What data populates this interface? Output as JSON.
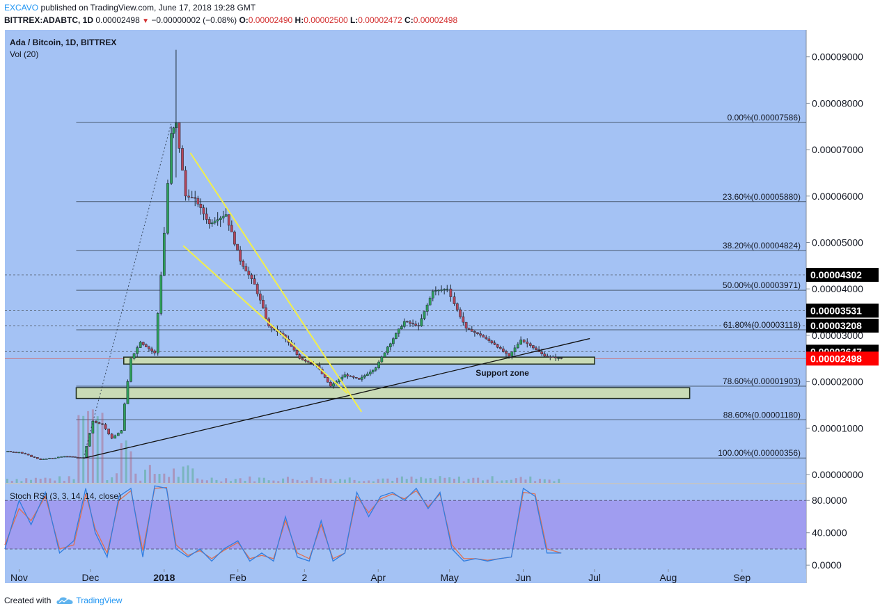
{
  "header": {
    "publisher": "EXCAVO",
    "published_text": "published on TradingView.com, June 17, 2018 19:28 GMT",
    "symbol": "BITTREX:ADABTC, 1D",
    "last": "0.00002498",
    "change": "−0.00000002 (−0.08%)",
    "o_label": "O:",
    "o": "0.00002490",
    "h_label": "H:",
    "h": "0.00002500",
    "l_label": "L:",
    "l": "0.00002472",
    "c_label": "C:",
    "c": "0.00002498"
  },
  "footer": {
    "created_with": "Created with",
    "brand": "TradingView"
  },
  "colors": {
    "background": "#a4c2f4",
    "up": "#2e9e5a",
    "down": "#b5455a",
    "fib_line": "#4a5b70",
    "wedge": "#f2ef4a",
    "zone": "#c9dbb6",
    "price_tag": "#000000",
    "last_tag": "#ff0000",
    "stoch_band": "#a096ef",
    "k_line": "#2f7de0",
    "d_line": "#e06f4f"
  },
  "chart_data": {
    "type": "candlestick",
    "title": "Ada / Bitcoin, 1D, BITTREX",
    "volume_label": "Vol (20)",
    "x_ticks": [
      "Nov",
      "Dec",
      "2018",
      "Feb",
      "2",
      "Apr",
      "May",
      "Jun",
      "Jul",
      "Aug",
      "Sep"
    ],
    "y_ticks": [
      "0.00000000",
      "0.00001000",
      "0.00002000",
      "0.00003000",
      "0.00004000",
      "0.00005000",
      "0.00006000",
      "0.00007000",
      "0.00008000",
      "0.00009000"
    ],
    "ylim": [
      -1.8e-06,
      9.58e-05
    ],
    "price_series": {
      "name": "ADABTC",
      "dates": [
        "2017-10-26",
        "2017-11-01",
        "2017-11-10",
        "2017-11-20",
        "2017-11-28",
        "2017-12-02",
        "2017-12-06",
        "2017-12-10",
        "2017-12-14",
        "2017-12-18",
        "2017-12-22",
        "2017-12-28",
        "2018-01-01",
        "2018-01-04",
        "2018-01-06",
        "2018-01-10",
        "2018-01-14",
        "2018-01-20",
        "2018-01-27",
        "2018-02-02",
        "2018-02-08",
        "2018-02-14",
        "2018-02-20",
        "2018-02-27",
        "2018-03-06",
        "2018-03-12",
        "2018-03-18",
        "2018-03-24",
        "2018-03-31",
        "2018-04-05",
        "2018-04-12",
        "2018-04-18",
        "2018-04-24",
        "2018-04-30",
        "2018-05-03",
        "2018-05-08",
        "2018-05-14",
        "2018-05-20",
        "2018-05-26",
        "2018-05-31",
        "2018-06-04",
        "2018-06-10",
        "2018-06-17"
      ],
      "close": [
        5e-06,
        4.8e-06,
        3.2e-06,
        3.9e-06,
        3.6e-06,
        1.15e-05,
        1.08e-05,
        7.8e-06,
        9.5e-06,
        2.5e-05,
        2.85e-05,
        2.62e-05,
        5.2e-05,
        7.35e-05,
        7.58e-05,
        6e-05,
        5.95e-05,
        5.4e-05,
        5.6e-05,
        4.6e-05,
        4.1e-05,
        3.2e-05,
        3e-05,
        2.5e-05,
        2.35e-05,
        1.9e-05,
        2.15e-05,
        2.05e-05,
        2.3e-05,
        2.75e-05,
        3.3e-05,
        3.2e-05,
        3.95e-05,
        4e-05,
        3.68e-05,
        3.15e-05,
        3e-05,
        2.8e-05,
        2.55e-05,
        2.9e-05,
        2.78e-05,
        2.55e-05,
        2.5e-05
      ]
    },
    "fibonacci": [
      {
        "label": "0.00%(0.00007586)",
        "value": 7.586e-05
      },
      {
        "label": "23.60%(0.00005880)",
        "value": 5.88e-05
      },
      {
        "label": "38.20%(0.00004824)",
        "value": 4.824e-05
      },
      {
        "label": "50.00%(0.00003971)",
        "value": 3.971e-05
      },
      {
        "label": "61.80%(0.00003118)",
        "value": 3.118e-05
      },
      {
        "label": "78.60%(0.00001903)",
        "value": 1.903e-05
      },
      {
        "label": "88.60%(0.00001180)",
        "value": 1.18e-05
      },
      {
        "label": "100.00%(0.00000356)",
        "value": 3.56e-06
      }
    ],
    "price_tags": [
      {
        "label": "0.00004302",
        "value": 4.302e-05
      },
      {
        "label": "0.00003531",
        "value": 3.531e-05
      },
      {
        "label": "0.00003208",
        "value": 3.208e-05
      },
      {
        "label": "0.00002647",
        "value": 2.647e-05
      },
      {
        "label": "0.00002498",
        "value": 2.498e-05,
        "last": true
      }
    ],
    "support_zones": [
      {
        "from": "2017-12-15",
        "to": "2018-07-01",
        "low": 2.38e-05,
        "high": 2.53e-05
      },
      {
        "from": "2017-11-25",
        "to": "2018-08-10",
        "low": 1.64e-05,
        "high": 1.87e-05
      }
    ],
    "support_zone_label": "Support zone",
    "wedge_upper": [
      {
        "date": "2018-01-12",
        "value": 6.93e-05
      },
      {
        "date": "2018-03-25",
        "value": 1.35e-05
      }
    ],
    "wedge_lower": [
      {
        "date": "2018-01-09",
        "value": 4.93e-05
      },
      {
        "date": "2018-03-19",
        "value": 1.75e-05
      }
    ],
    "trendline": [
      {
        "date": "2017-11-28",
        "value": 3.5e-06
      },
      {
        "date": "2018-06-29",
        "value": 2.93e-05
      }
    ],
    "impulse_dotted": [
      {
        "date": "2017-11-28",
        "value": 3.5e-06
      },
      {
        "date": "2018-01-04",
        "value": 7.58e-05
      }
    ],
    "stoch_rsi": {
      "label": "Stoch RSI (3, 3, 14, 14, close)",
      "y_ticks": [
        "0.0000",
        "40.0000",
        "80.0000"
      ],
      "ylim": [
        -5,
        100
      ],
      "band": [
        20,
        80
      ],
      "dates": [
        "2017-10-26",
        "2017-11-01",
        "2017-11-06",
        "2017-11-12",
        "2017-11-18",
        "2017-11-24",
        "2017-11-29",
        "2017-12-03",
        "2017-12-08",
        "2017-12-13",
        "2017-12-18",
        "2017-12-23",
        "2017-12-28",
        "2018-01-02",
        "2018-01-06",
        "2018-01-11",
        "2018-01-16",
        "2018-01-21",
        "2018-01-26",
        "2018-02-01",
        "2018-02-06",
        "2018-02-11",
        "2018-02-16",
        "2018-02-21",
        "2018-02-26",
        "2018-03-03",
        "2018-03-08",
        "2018-03-13",
        "2018-03-18",
        "2018-03-23",
        "2018-03-28",
        "2018-04-02",
        "2018-04-07",
        "2018-04-12",
        "2018-04-17",
        "2018-04-22",
        "2018-04-27",
        "2018-05-02",
        "2018-05-07",
        "2018-05-12",
        "2018-05-17",
        "2018-05-22",
        "2018-05-27",
        "2018-06-01",
        "2018-06-06",
        "2018-06-11",
        "2018-06-17"
      ],
      "k": [
        20,
        80,
        50,
        90,
        15,
        30,
        95,
        40,
        10,
        85,
        95,
        10,
        98,
        95,
        20,
        10,
        20,
        5,
        20,
        30,
        5,
        15,
        5,
        60,
        10,
        5,
        55,
        5,
        15,
        90,
        60,
        85,
        90,
        80,
        95,
        70,
        90,
        20,
        5,
        8,
        5,
        8,
        10,
        95,
        85,
        15,
        15
      ],
      "d": [
        25,
        70,
        55,
        85,
        20,
        25,
        88,
        45,
        15,
        80,
        92,
        18,
        95,
        96,
        25,
        12,
        18,
        8,
        18,
        28,
        8,
        12,
        8,
        55,
        15,
        8,
        50,
        8,
        15,
        85,
        65,
        82,
        88,
        82,
        92,
        72,
        88,
        25,
        8,
        8,
        6,
        8,
        10,
        90,
        88,
        20,
        15
      ]
    }
  }
}
